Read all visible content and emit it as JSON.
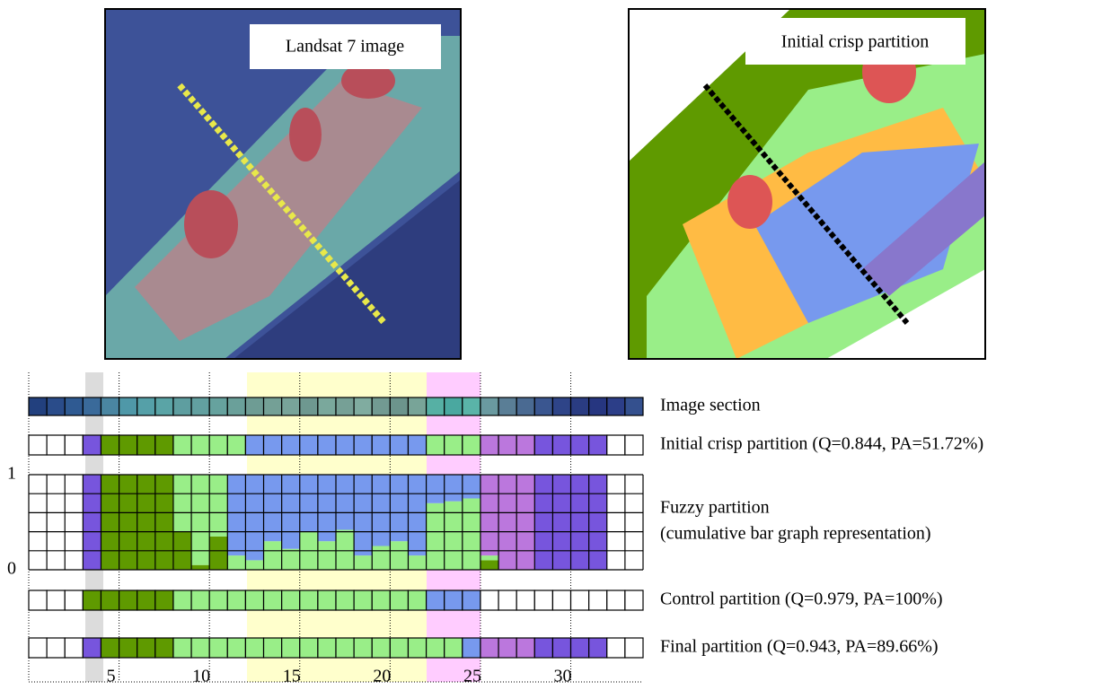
{
  "images": [
    {
      "label": "Landsat 7 image"
    },
    {
      "label": "Initial crisp partition"
    }
  ],
  "chart_data": {
    "type": "strip",
    "xlim": [
      0,
      34
    ],
    "xticks": [
      5,
      10,
      15,
      20,
      25,
      30
    ],
    "ylim": [
      0,
      1
    ],
    "yticks": [
      0,
      1
    ],
    "image_section": {
      "label": "Image section",
      "colors": [
        "#22407e",
        "#2a4c8a",
        "#2f5a92",
        "#3a6a9a",
        "#4a86a2",
        "#4f98a8",
        "#55a0a8",
        "#5aa4a6",
        "#5e9ea0",
        "#62a0a0",
        "#66a29e",
        "#6aa09a",
        "#6e9c94",
        "#74a096",
        "#78a49a",
        "#6e9890",
        "#7aa89c",
        "#76a096",
        "#80aca0",
        "#729a92",
        "#6c948c",
        "#78a498",
        "#56b0a4",
        "#4aa8a0",
        "#5ab4a8",
        "#6a9aa0",
        "#5a7e96",
        "#4a6a92",
        "#3a5690",
        "#2e4488",
        "#2a3c82",
        "#263680",
        "#2c3e88",
        "#34508e"
      ]
    },
    "initial": {
      "label": "Initial crisp partition (Q=0.844, PA=51.72%)",
      "colors": [
        "#ffffff",
        "#ffffff",
        "#ffffff",
        "#7755dd",
        "#5f9a00",
        "#5f9a00",
        "#5f9a00",
        "#5f9a00",
        "#99ee88",
        "#99ee88",
        "#99ee88",
        "#99ee88",
        "#7799ee",
        "#7799ee",
        "#7799ee",
        "#7799ee",
        "#7799ee",
        "#7799ee",
        "#7799ee",
        "#7799ee",
        "#7799ee",
        "#7799ee",
        "#99ee88",
        "#99ee88",
        "#99ee88",
        "#bb77dd",
        "#bb77dd",
        "#bb77dd",
        "#7755dd",
        "#7755dd",
        "#7755dd",
        "#7755dd",
        "#ffffff",
        "#ffffff"
      ]
    },
    "fuzzy": {
      "label": [
        "Fuzzy partition",
        "(cumulative bar graph representation)"
      ],
      "series": [
        {
          "color": "#5f9a00",
          "values": [
            0,
            0,
            0,
            0,
            1,
            1,
            1,
            1,
            0.4,
            0.05,
            0.35,
            0,
            0,
            0,
            0,
            0,
            0,
            0,
            0,
            0,
            0,
            0,
            0,
            0,
            0,
            0.1,
            0,
            0,
            0,
            0,
            0,
            0,
            0,
            0
          ]
        },
        {
          "color": "#99ee88",
          "values": [
            0,
            0,
            0,
            0,
            0,
            0,
            0,
            0,
            0.6,
            0.95,
            0.65,
            0.15,
            0.1,
            0.3,
            0.22,
            0.4,
            0.3,
            0.42,
            0.15,
            0.25,
            0.3,
            0.15,
            0.7,
            0.72,
            0.75,
            0.05,
            0,
            0,
            0,
            0,
            0,
            0,
            0,
            0
          ]
        },
        {
          "color": "#7799ee",
          "values": [
            0,
            0,
            0,
            0,
            0,
            0,
            0,
            0,
            0,
            0,
            0,
            0.85,
            0.9,
            0.7,
            0.78,
            0.6,
            0.7,
            0.58,
            0.85,
            0.75,
            0.7,
            0.85,
            0.3,
            0.28,
            0.25,
            0,
            0,
            0,
            0,
            0,
            0,
            0,
            0,
            0
          ]
        },
        {
          "color": "#bb77dd",
          "values": [
            0,
            0,
            0,
            0,
            0,
            0,
            0,
            0,
            0,
            0,
            0,
            0,
            0,
            0,
            0,
            0,
            0,
            0,
            0,
            0,
            0,
            0,
            0,
            0,
            0,
            0.85,
            1,
            1,
            0,
            0,
            0,
            0,
            0,
            0
          ]
        },
        {
          "color": "#7755dd",
          "values": [
            0,
            0,
            0,
            1,
            0,
            0,
            0,
            0,
            0,
            0,
            0,
            0,
            0,
            0,
            0,
            0,
            0,
            0,
            0,
            0,
            0,
            0,
            0,
            0,
            0,
            0,
            0,
            0,
            1,
            1,
            1,
            1,
            0,
            0
          ]
        }
      ]
    },
    "control": {
      "label": "Control partition (Q=0.979, PA=100%)",
      "colors": [
        "#ffffff",
        "#ffffff",
        "#ffffff",
        "#5f9a00",
        "#5f9a00",
        "#5f9a00",
        "#5f9a00",
        "#5f9a00",
        "#99ee88",
        "#99ee88",
        "#99ee88",
        "#99ee88",
        "#99ee88",
        "#99ee88",
        "#99ee88",
        "#99ee88",
        "#99ee88",
        "#99ee88",
        "#99ee88",
        "#99ee88",
        "#99ee88",
        "#99ee88",
        "#7799ee",
        "#7799ee",
        "#7799ee",
        "#ffffff",
        "#ffffff",
        "#ffffff",
        "#ffffff",
        "#ffffff",
        "#ffffff",
        "#ffffff",
        "#ffffff",
        "#ffffff"
      ]
    },
    "final": {
      "label": "Final partition (Q=0.943, PA=89.66%)",
      "colors": [
        "#ffffff",
        "#ffffff",
        "#ffffff",
        "#7755dd",
        "#5f9a00",
        "#5f9a00",
        "#5f9a00",
        "#5f9a00",
        "#99ee88",
        "#99ee88",
        "#99ee88",
        "#99ee88",
        "#99ee88",
        "#99ee88",
        "#99ee88",
        "#99ee88",
        "#99ee88",
        "#99ee88",
        "#99ee88",
        "#99ee88",
        "#99ee88",
        "#99ee88",
        "#99ee88",
        "#99ee88",
        "#7799ee",
        "#bb77dd",
        "#bb77dd",
        "#bb77dd",
        "#7755dd",
        "#7755dd",
        "#7755dd",
        "#7755dd",
        "#ffffff",
        "#ffffff"
      ]
    }
  }
}
